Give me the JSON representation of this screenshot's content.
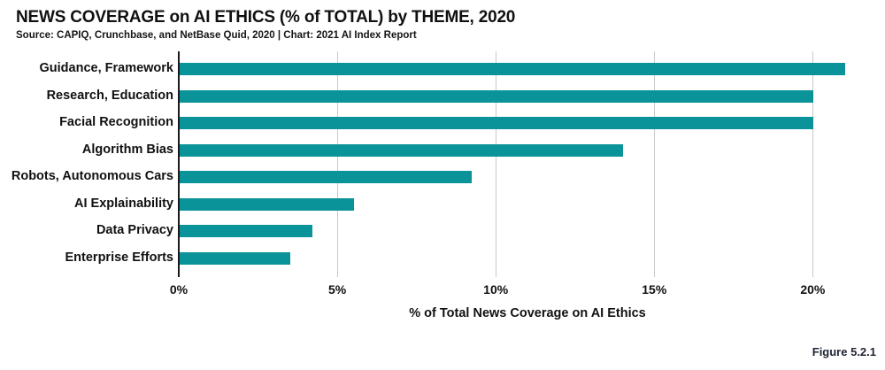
{
  "header": {
    "title": "NEWS COVERAGE on AI ETHICS (% of TOTAL) by THEME, 2020",
    "source": "Source: CAPIQ, Crunchbase, and NetBase Quid, 2020 | Chart: 2021 AI Index Report"
  },
  "figure_label": "Figure 5.2.1",
  "chart_data": {
    "type": "bar",
    "orientation": "horizontal",
    "title": "NEWS COVERAGE on AI ETHICS (% of TOTAL) by THEME, 2020",
    "categories": [
      "Guidance, Framework",
      "Research, Education",
      "Facial Recognition",
      "Algorithm Bias",
      "Robots, Autonomous Cars",
      "AI Explainability",
      "Data Privacy",
      "Enterprise Efforts"
    ],
    "values": [
      21.0,
      20.0,
      20.0,
      14.0,
      9.2,
      5.5,
      4.2,
      3.5
    ],
    "xlabel": "% of Total News Coverage on AI Ethics",
    "x_ticks": [
      "0%",
      "5%",
      "10%",
      "15%",
      "20%"
    ],
    "x_tick_values": [
      0,
      5,
      10,
      15,
      20
    ],
    "xlim": [
      0,
      22
    ],
    "grid": true,
    "bar_color": "#0a9499",
    "gridline_color": "#c9c9c9",
    "axis_color": "#1a1a1a"
  }
}
